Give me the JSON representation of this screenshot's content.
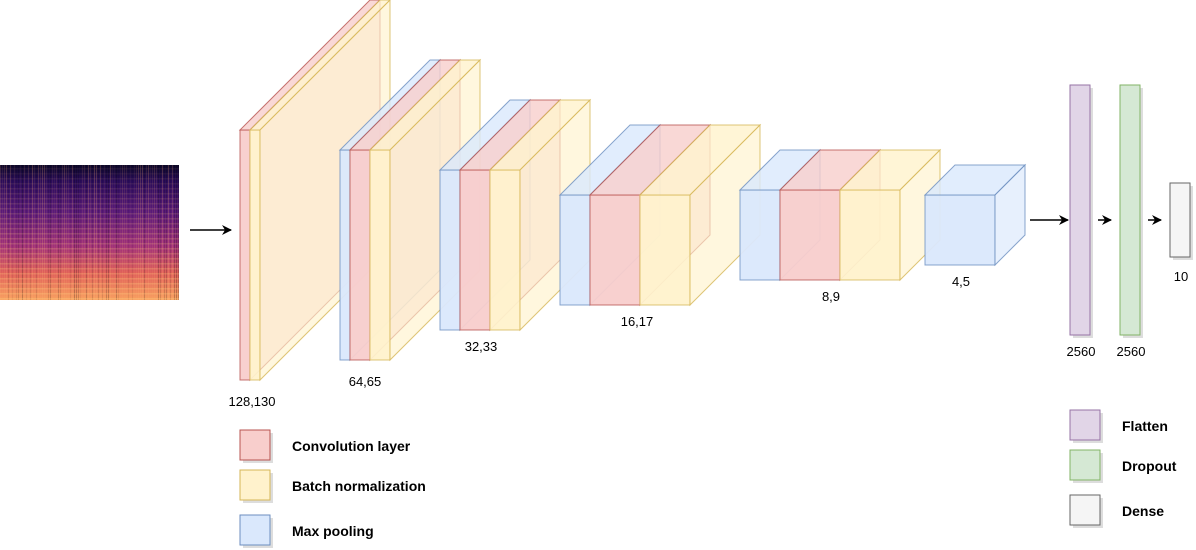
{
  "colors": {
    "conv": "#f8cecc",
    "conv_stroke": "#b85450",
    "batch": "#fff2cc",
    "batch_stroke": "#d6b656",
    "pool": "#dae8fc",
    "pool_stroke": "#6c8ebf",
    "flatten": "#e1d5e7",
    "flatten_stroke": "#9673a6",
    "dropout": "#d5e8d4",
    "dropout_stroke": "#82b366",
    "dense": "#f5f5f5",
    "dense_stroke": "#666666"
  },
  "layers": [
    {
      "label": "128,130"
    },
    {
      "label": "64,65"
    },
    {
      "label": "32,33"
    },
    {
      "label": "16,17"
    },
    {
      "label": "8,9"
    },
    {
      "label": "4,5"
    },
    {
      "label": "2560"
    },
    {
      "label": "2560"
    },
    {
      "label": "10"
    }
  ],
  "legend_left": [
    {
      "label": "Convolution layer",
      "color_key": "conv"
    },
    {
      "label": "Batch normalization",
      "color_key": "batch"
    },
    {
      "label": "Max  pooling",
      "color_key": "pool"
    }
  ],
  "legend_right": [
    {
      "label": "Flatten",
      "color_key": "flatten"
    },
    {
      "label": "Dropout",
      "color_key": "dropout"
    },
    {
      "label": "Dense",
      "color_key": "dense"
    }
  ]
}
